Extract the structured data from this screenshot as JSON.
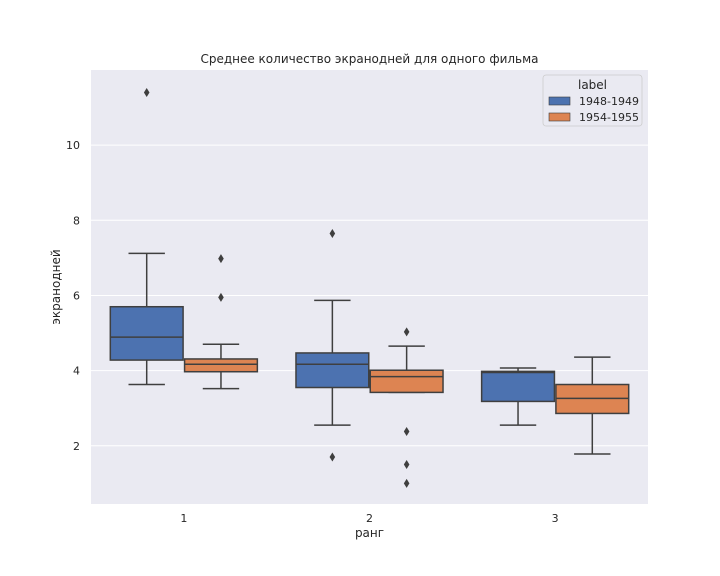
{
  "chart_data": {
    "type": "box",
    "title": "Среднее количество экранодней для одного фильма",
    "xlabel": "ранг",
    "ylabel": "экранодней",
    "categories": [
      "1",
      "2",
      "3"
    ],
    "ylim": [
      0.45,
      12.0
    ],
    "yticks": [
      2,
      4,
      6,
      8,
      10
    ],
    "grid": true,
    "legend": {
      "title": "label",
      "placement": "top-right"
    },
    "series": [
      {
        "name": "1948-1949",
        "color": "#4c72b0",
        "boxes": [
          {
            "category": "1",
            "whisker_low": 3.63,
            "q1": 4.28,
            "median": 4.89,
            "q3": 5.7,
            "whisker_high": 7.12,
            "outliers": [
              11.4
            ]
          },
          {
            "category": "2",
            "whisker_low": 2.55,
            "q1": 3.55,
            "median": 4.17,
            "q3": 4.47,
            "whisker_high": 5.87,
            "outliers": [
              7.65,
              1.7
            ]
          },
          {
            "category": "3",
            "whisker_low": 2.55,
            "q1": 3.18,
            "median": 3.95,
            "q3": 3.98,
            "whisker_high": 4.07,
            "outliers": []
          }
        ]
      },
      {
        "name": "1954-1955",
        "color": "#dd8452",
        "boxes": [
          {
            "category": "1",
            "whisker_low": 3.52,
            "q1": 3.97,
            "median": 4.17,
            "q3": 4.31,
            "whisker_high": 4.7,
            "outliers": [
              6.98,
              5.95
            ]
          },
          {
            "category": "2",
            "whisker_low": 3.42,
            "q1": 3.42,
            "median": 3.84,
            "q3": 4.01,
            "whisker_high": 4.65,
            "outliers": [
              5.03,
              2.38,
              1.5,
              1.0
            ]
          },
          {
            "category": "3",
            "whisker_low": 1.78,
            "q1": 2.86,
            "median": 3.26,
            "q3": 3.63,
            "whisker_high": 4.36,
            "outliers": []
          }
        ]
      }
    ]
  }
}
